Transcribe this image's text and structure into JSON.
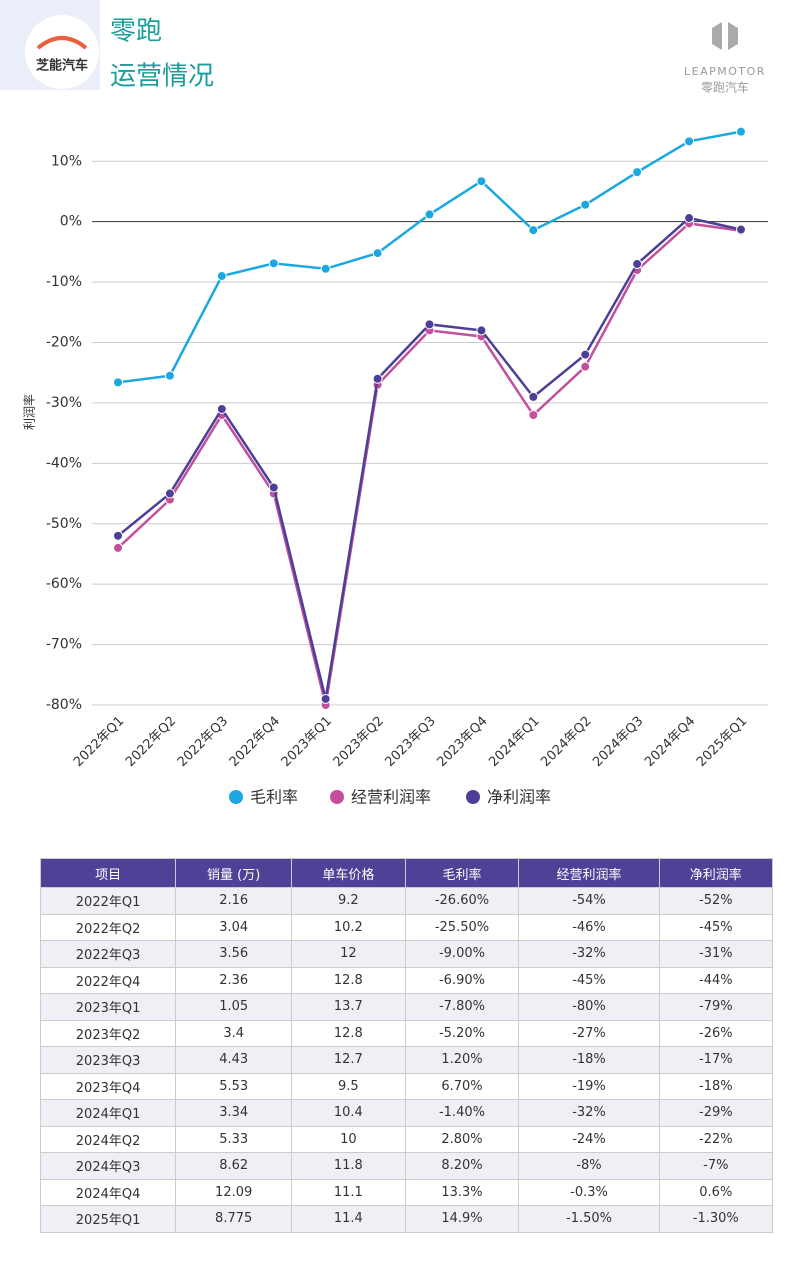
{
  "header": {
    "brand": "芝能汽车",
    "title": [
      "零跑",
      "运营情况"
    ],
    "company": "LEAPMOTOR",
    "company_cn": "零跑汽车"
  },
  "chart_data": {
    "type": "line",
    "y_label": "利润率",
    "categories": [
      "2022年Q1",
      "2022年Q2",
      "2022年Q3",
      "2022年Q4",
      "2023年Q1",
      "2023年Q2",
      "2023年Q3",
      "2023年Q4",
      "2024年Q1",
      "2024年Q2",
      "2024年Q3",
      "2024年Q4",
      "2025年Q1"
    ],
    "series": [
      {
        "name": "毛利率",
        "color": "#1ba8e0",
        "values": [
          -26.6,
          -25.5,
          -9.0,
          -6.9,
          -7.8,
          -5.2,
          1.2,
          6.7,
          -1.4,
          2.8,
          8.2,
          13.3,
          14.9
        ]
      },
      {
        "name": "经营利润率",
        "color": "#c2509c",
        "values": [
          -54,
          -46,
          -32,
          -45,
          -80,
          -27,
          -18,
          -19,
          -32,
          -24,
          -8,
          -0.3,
          -1.5
        ]
      },
      {
        "name": "净利润率",
        "color": "#4c3f98",
        "values": [
          -52,
          -45,
          -31,
          -44,
          -79,
          -26,
          -17,
          -18,
          -29,
          -22,
          -7,
          0.6,
          -1.3
        ]
      }
    ],
    "ylim": [
      -80,
      16
    ],
    "yticks": [
      {
        "value": -80,
        "label": "-80%"
      },
      {
        "value": -70,
        "label": "-70%"
      },
      {
        "value": -60,
        "label": "-60%"
      },
      {
        "value": -50,
        "label": "-50%"
      },
      {
        "value": -40,
        "label": "-40%"
      },
      {
        "value": -30,
        "label": "-30%"
      },
      {
        "value": -20,
        "label": "-20%"
      },
      {
        "value": -10,
        "label": "-10%"
      },
      {
        "value": 0,
        "label": "0%"
      },
      {
        "value": 10,
        "label": "10%"
      }
    ],
    "grid": true
  },
  "table": {
    "header": [
      "项目",
      "销量 (万)",
      "单车价格",
      "毛利率",
      "经营利润率",
      "净利润率"
    ],
    "rows": [
      [
        "2022年Q1",
        "2.16",
        "9.2",
        "-26.60%",
        "-54%",
        "-52%"
      ],
      [
        "2022年Q2",
        "3.04",
        "10.2",
        "-25.50%",
        "-46%",
        "-45%"
      ],
      [
        "2022年Q3",
        "3.56",
        "12",
        "-9.00%",
        "-32%",
        "-31%"
      ],
      [
        "2022年Q4",
        "2.36",
        "12.8",
        "-6.90%",
        "-45%",
        "-44%"
      ],
      [
        "2023年Q1",
        "1.05",
        "13.7",
        "-7.80%",
        "-80%",
        "-79%"
      ],
      [
        "2023年Q2",
        "3.4",
        "12.8",
        "-5.20%",
        "-27%",
        "-26%"
      ],
      [
        "2023年Q3",
        "4.43",
        "12.7",
        "1.20%",
        "-18%",
        "-17%"
      ],
      [
        "2023年Q4",
        "5.53",
        "9.5",
        "6.70%",
        "-19%",
        "-18%"
      ],
      [
        "2024年Q1",
        "3.34",
        "10.4",
        "-1.40%",
        "-32%",
        "-29%"
      ],
      [
        "2024年Q2",
        "5.33",
        "10",
        "2.80%",
        "-24%",
        "-22%"
      ],
      [
        "2024年Q3",
        "8.62",
        "11.8",
        "8.20%",
        "-8%",
        "-7%"
      ],
      [
        "2024年Q4",
        "12.09",
        "11.1",
        "13.3%",
        "-0.3%",
        "0.6%"
      ],
      [
        "2025年Q1",
        "8.775",
        "11.4",
        "14.9%",
        "-1.50%",
        "-1.30%"
      ]
    ]
  }
}
